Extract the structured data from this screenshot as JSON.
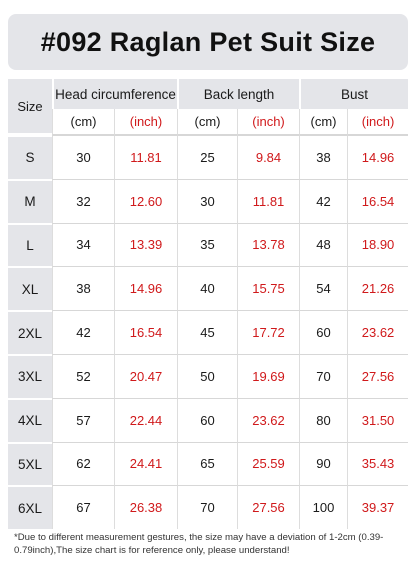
{
  "title": "#092  Raglan Pet Suit Size",
  "headers": {
    "size": "Size",
    "head": "Head circumference",
    "back": "Back length",
    "bust": "Bust",
    "cm": "(cm)",
    "inch": "(inch)"
  },
  "rows": [
    {
      "size": "S",
      "head_cm": "30",
      "head_in": "11.81",
      "back_cm": "25",
      "back_in": "9.84",
      "bust_cm": "38",
      "bust_in": "14.96"
    },
    {
      "size": "M",
      "head_cm": "32",
      "head_in": "12.60",
      "back_cm": "30",
      "back_in": "11.81",
      "bust_cm": "42",
      "bust_in": "16.54"
    },
    {
      "size": "L",
      "head_cm": "34",
      "head_in": "13.39",
      "back_cm": "35",
      "back_in": "13.78",
      "bust_cm": "48",
      "bust_in": "18.90"
    },
    {
      "size": "XL",
      "head_cm": "38",
      "head_in": "14.96",
      "back_cm": "40",
      "back_in": "15.75",
      "bust_cm": "54",
      "bust_in": "21.26"
    },
    {
      "size": "2XL",
      "head_cm": "42",
      "head_in": "16.54",
      "back_cm": "45",
      "back_in": "17.72",
      "bust_cm": "60",
      "bust_in": "23.62"
    },
    {
      "size": "3XL",
      "head_cm": "52",
      "head_in": "20.47",
      "back_cm": "50",
      "back_in": "19.69",
      "bust_cm": "70",
      "bust_in": "27.56"
    },
    {
      "size": "4XL",
      "head_cm": "57",
      "head_in": "22.44",
      "back_cm": "60",
      "back_in": "23.62",
      "bust_cm": "80",
      "bust_in": "31.50"
    },
    {
      "size": "5XL",
      "head_cm": "62",
      "head_in": "24.41",
      "back_cm": "65",
      "back_in": "25.59",
      "bust_cm": "90",
      "bust_in": "35.43"
    },
    {
      "size": "6XL",
      "head_cm": "67",
      "head_in": "26.38",
      "back_cm": "70",
      "back_in": "27.56",
      "bust_cm": "100",
      "bust_in": "39.37"
    }
  ],
  "note": "*Due to different measurement gestures, the size may have a deviation of 1-2cm (0.39-0.79inch),The size chart is for reference only, please understand!",
  "colors": {
    "header_bg": "#e4e5e9",
    "inch_text": "#d0191b"
  }
}
